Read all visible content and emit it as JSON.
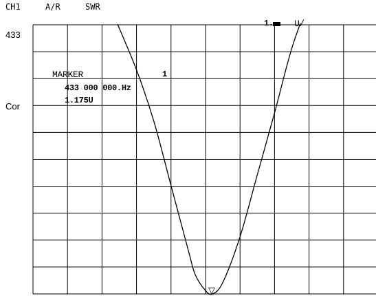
{
  "header": {
    "channel": "CH1",
    "format": "A/R",
    "measurement": "SWR"
  },
  "left_labels": {
    "center_frequency": "433",
    "correction": "Cor"
  },
  "scale_readout": {
    "value": "1.",
    "unit": "U/"
  },
  "marker": {
    "title": "MARKER",
    "number": "1",
    "frequency": "433 000 000.Hz",
    "value": "1.175U"
  },
  "trace_marker_symbol": "▽",
  "colors": {
    "background": "#ffffff",
    "grid": "#000000",
    "trace": "#000000"
  },
  "chart_data": {
    "type": "line",
    "title": "",
    "xlabel": "",
    "ylabel": "",
    "x_divisions": 10,
    "y_divisions": 10,
    "reference_top_value": 11.175,
    "units_per_division": 1,
    "series": [
      {
        "x": [
          2.45,
          3.0,
          3.5,
          4.0,
          4.5,
          4.7,
          5.0,
          5.2,
          5.5,
          6.0,
          6.5,
          7.0,
          7.5,
          8.0,
          8.3
        ],
        "y": [
          11.2,
          9.5,
          7.6,
          5.2,
          2.8,
          1.9,
          1.3,
          1.175,
          1.6,
          3.3,
          5.6,
          7.9,
          10.3,
          12.1,
          13.2
        ]
      }
    ],
    "marker": {
      "x": 5.2,
      "y": 1.175,
      "label": "1"
    },
    "grid": true
  }
}
